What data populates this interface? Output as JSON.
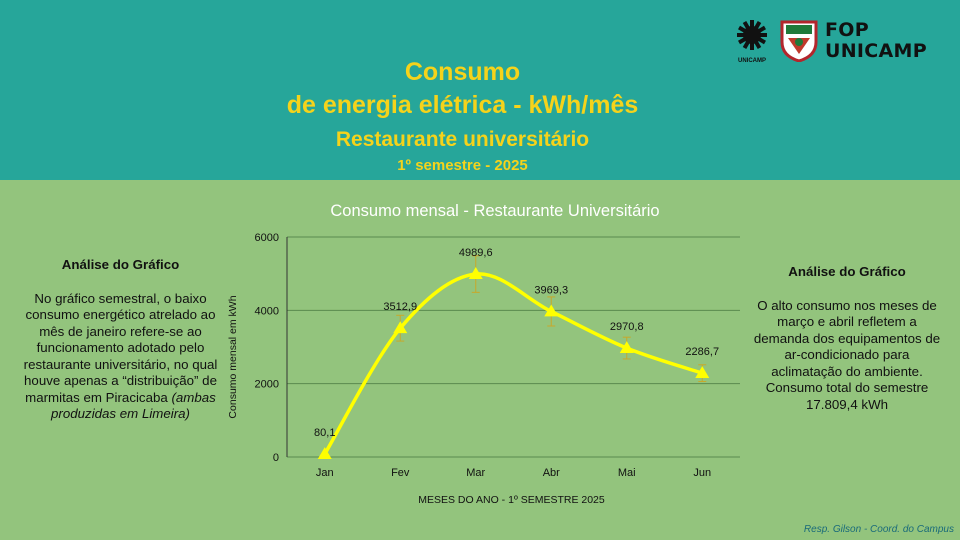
{
  "header": {
    "title_line1": "Consumo",
    "title_line2": "de energia elétrica - kWh/mês",
    "subtitle": "Restaurante universitário",
    "period": "1º semestre - 2025",
    "logo_text_line1": "FOP",
    "logo_text_line2": "UNICAMP",
    "logo_small_text": "UNICAMP"
  },
  "left_panel": {
    "heading": "Análise do Gráfico",
    "body": "No gráfico semestral, o baixo consumo energético atrelado ao mês de janeiro refere-se ao funcionamento adotado pelo restaurante universitário, no qual houve apenas a “distribuição” de marmitas em Piracicaba",
    "body_italic": "(ambas produzidas em Limeira)"
  },
  "right_panel": {
    "heading": "Análise do Gráfico",
    "body": "O alto consumo nos meses de março e abril refletem a demanda dos equipamentos de ar-condicionado para aclimatação do ambiente. Consumo total do semestre 17.809,4 kWh"
  },
  "footer": {
    "credit": "Resp. Gilson - Coord. do Campus"
  },
  "colors": {
    "header_bg": "#26a69a",
    "body_bg": "#93c47d",
    "title": "#f5d31b",
    "series": "#ffff00",
    "error_bar": "#c8a82a"
  },
  "chart_data": {
    "type": "line",
    "title": "Consumo mensal - Restaurante Universitário",
    "xlabel": "MESES DO ANO - 1º SEMESTRE 2025",
    "ylabel": "Consumo mensal em kWh",
    "categories": [
      "Jan",
      "Fev",
      "Mar",
      "Abr",
      "Mai",
      "Jun"
    ],
    "values": [
      80.1,
      3512.9,
      4989.6,
      3969.3,
      2970.8,
      2286.7
    ],
    "data_labels": [
      "80,1",
      "3512,9",
      "4989,6",
      "3969,3",
      "2970,8",
      "2286,7"
    ],
    "yticks": [
      "0",
      "2000",
      "4000",
      "6000"
    ],
    "ylim": [
      0,
      6000
    ],
    "marker": "triangle",
    "smooth": true,
    "error_bars_percent": 10,
    "grid": "horizontal"
  }
}
